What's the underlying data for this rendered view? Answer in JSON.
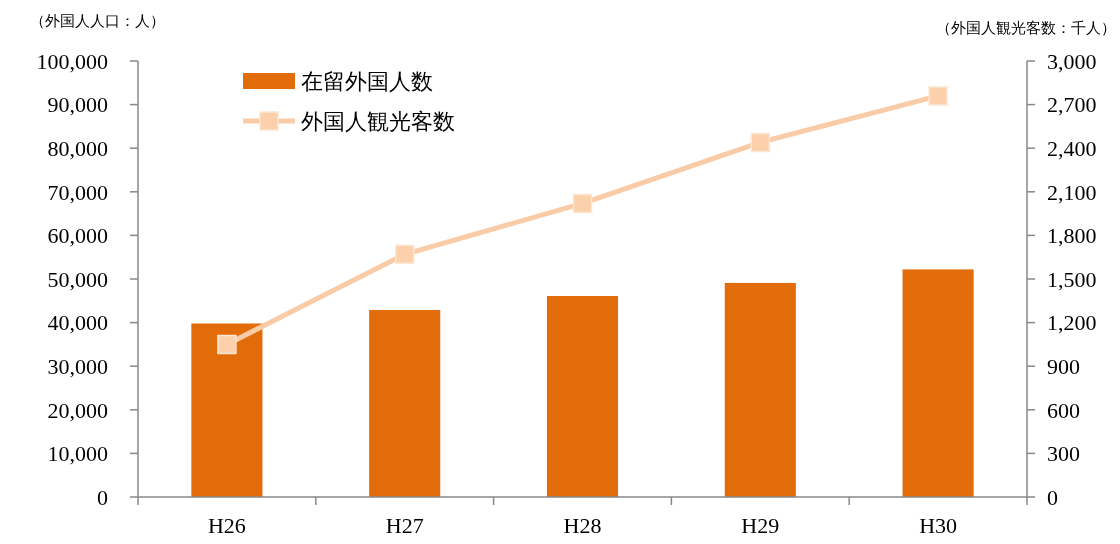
{
  "chart_data": {
    "type": "bar",
    "ylabel": "（外国人人口：人）",
    "y2label": "（外国人観光客数：千人）",
    "categories": [
      "H26",
      "H27",
      "H28",
      "H29",
      "H30"
    ],
    "series": [
      {
        "name": "在留外国人数",
        "color": "#e36c0a",
        "values": [
          39800,
          42900,
          46100,
          49100,
          52200
        ]
      },
      {
        "name": "外国人観光客数",
        "type": "line",
        "axis": "y2",
        "color": "#f9cba6",
        "marker": "square",
        "values": [
          1050,
          1670,
          2020,
          2440,
          2760
        ]
      }
    ],
    "ylim": [
      0,
      100000
    ],
    "yticks": [
      0,
      {
        "value": 10000,
        "label": "10,000"
      },
      {
        "value": 20000,
        "label": "20,000"
      },
      {
        "value": 30000,
        "label": "30,000"
      },
      {
        "value": 40000,
        "label": "40,000"
      },
      {
        "value": 50000,
        "label": "50,000"
      },
      {
        "value": 60000,
        "label": "60,000"
      },
      {
        "value": 70000,
        "label": "70,000"
      },
      {
        "value": 80000,
        "label": "80,000"
      },
      {
        "value": 90000,
        "label": "90,000"
      },
      {
        "value": 100000,
        "label": "100,000"
      }
    ],
    "y2lim": [
      0,
      3000
    ],
    "y2ticks": [
      0,
      300,
      600,
      900,
      {
        "value": 1200,
        "label": "1,200"
      },
      {
        "value": 1500,
        "label": "1,500"
      },
      {
        "value": 1800,
        "label": "1,800"
      },
      {
        "value": 2100,
        "label": "2,100"
      },
      {
        "value": 2400,
        "label": "2,400"
      },
      {
        "value": 2700,
        "label": "2,700"
      },
      {
        "value": 3000,
        "label": "3,000"
      }
    ],
    "legend": "top left",
    "grid": false
  }
}
